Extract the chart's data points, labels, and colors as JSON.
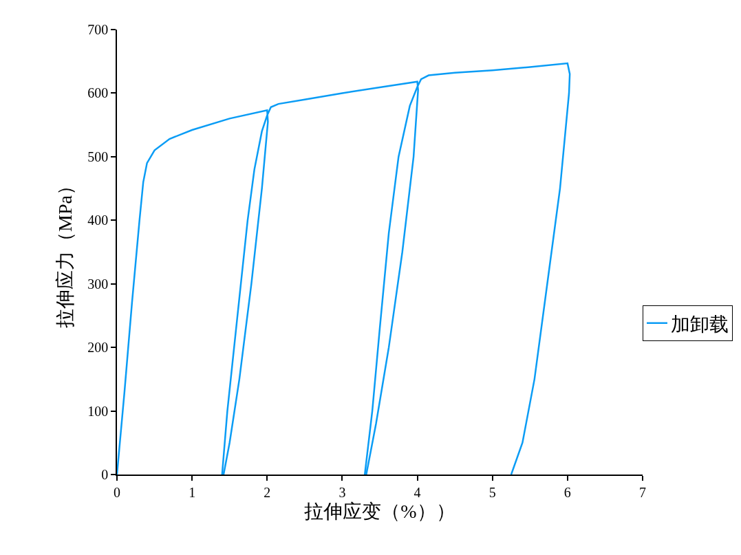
{
  "chart_data": {
    "type": "line",
    "xlabel": "拉伸应变（%））",
    "ylabel": "拉伸应力（MPa）",
    "xlim": [
      0,
      7
    ],
    "xticks": [
      0,
      1,
      2,
      3,
      4,
      5,
      6,
      7
    ],
    "ylim": [
      0,
      700
    ],
    "yticks": [
      0,
      100,
      200,
      300,
      400,
      500,
      600,
      700
    ],
    "legend": "right",
    "marker": "none",
    "line_style": "solid",
    "series": [
      {
        "name": "加卸载",
        "color": "#0a9cf5",
        "x": [
          0,
          0.1,
          0.2,
          0.3,
          0.35,
          0.4,
          0.5,
          0.7,
          1.0,
          1.5,
          2.0,
          2.01,
          1.93,
          1.79,
          1.63,
          1.5,
          1.42,
          1.4,
          1.47,
          1.56,
          1.65,
          1.74,
          1.83,
          1.93,
          2.0,
          2.05,
          2.15,
          2.5,
          3.0,
          3.5,
          4.0,
          4.01,
          3.95,
          3.8,
          3.62,
          3.45,
          3.32,
          3.3,
          3.4,
          3.5,
          3.62,
          3.75,
          3.9,
          4.0,
          4.05,
          4.15,
          4.5,
          5.0,
          5.5,
          6.0,
          6.03,
          6.02,
          5.9,
          5.73,
          5.56,
          5.4,
          5.25
        ],
        "values": [
          0,
          130,
          270,
          400,
          460,
          490,
          510,
          528,
          542,
          560,
          573,
          555,
          450,
          300,
          150,
          50,
          0,
          0,
          100,
          200,
          300,
          400,
          480,
          540,
          565,
          578,
          583,
          590,
          600,
          609,
          618,
          605,
          500,
          350,
          200,
          80,
          0,
          0,
          100,
          230,
          380,
          500,
          580,
          610,
          622,
          628,
          632,
          636,
          641,
          647,
          630,
          600,
          450,
          300,
          150,
          50,
          0
        ]
      }
    ]
  }
}
